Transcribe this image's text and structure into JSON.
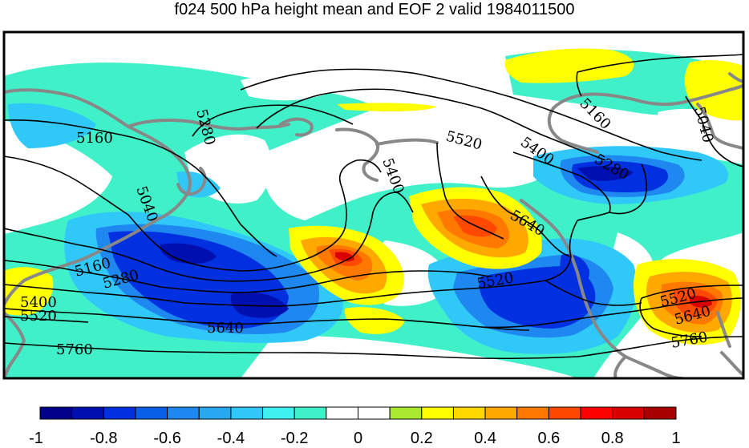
{
  "title": "f024 500 hPa height mean and EOF 2 valid 1984011500",
  "colorbar": {
    "colors": [
      "#00008b",
      "#0010b0",
      "#0030e0",
      "#0a60e8",
      "#1e88f0",
      "#28a8f0",
      "#30c8f8",
      "#40f0f0",
      "#40f0c8",
      "#ffffff",
      "#ffffff",
      "#a8e830",
      "#ffff00",
      "#ffd800",
      "#ffa800",
      "#ff7800",
      "#ff4800",
      "#ff0000",
      "#d80000",
      "#a80000"
    ],
    "tick_labels": [
      "-1",
      "-0.8",
      "-0.6",
      "-0.4",
      "-0.2",
      "0",
      "0.2",
      "0.4",
      "0.6",
      "0.8",
      "1"
    ]
  },
  "contour_labels": [
    "5160",
    "5280",
    "5040",
    "5160",
    "5280",
    "5400",
    "5520",
    "5760",
    "5640",
    "5520",
    "5400",
    "5160",
    "5040",
    "5280",
    "5640",
    "5520",
    "5520",
    "5640",
    "5760"
  ]
}
